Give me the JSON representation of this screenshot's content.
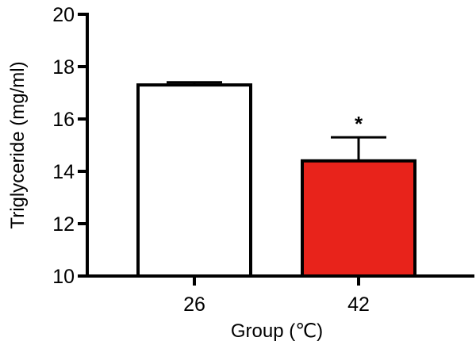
{
  "chart_data": {
    "type": "bar",
    "title": "",
    "xlabel": "Group (℃)",
    "ylabel": "Triglyceride (mg/ml)",
    "categories": [
      "26",
      "42"
    ],
    "values": [
      17.3,
      14.4
    ],
    "errors": [
      0.1,
      0.9
    ],
    "bar_colors": [
      "#ffffff",
      "#e8231b"
    ],
    "annotations": [
      "",
      "*"
    ],
    "ylim": [
      10,
      20
    ],
    "yticks": [
      10,
      12,
      14,
      16,
      18,
      20
    ],
    "grid": false,
    "legend": "none"
  }
}
